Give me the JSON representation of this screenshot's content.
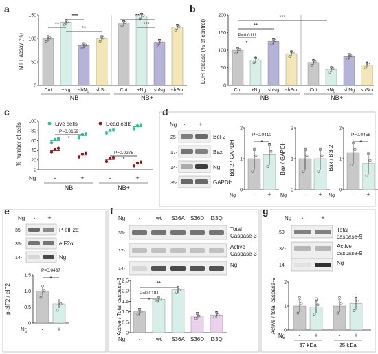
{
  "panels": {
    "a": "a",
    "b": "b",
    "c": "c",
    "d": "d",
    "e": "e",
    "f": "f",
    "g": "g"
  },
  "colors": {
    "grey": "#c8c8c8",
    "green": "#d8efe9",
    "purple": "#b6b3d8",
    "yellow": "#f3e7b7",
    "pink": "#ead3ea",
    "lime": "#2fbf92",
    "maroon": "#8b1a1a"
  },
  "chart_data": [
    {
      "id": "a",
      "type": "bar",
      "ylabel": "MTT assay (%)",
      "ylim": [
        0,
        150
      ],
      "yticks": [
        "0",
        "50",
        "100",
        "150"
      ],
      "categories": [
        "Cnt",
        "+Ng",
        "shNg",
        "shScr",
        "Cnt",
        "+Ng",
        "shNg",
        "shScr"
      ],
      "groups": [
        "NB",
        "NB+"
      ],
      "values": [
        100,
        135,
        85,
        100,
        133,
        148,
        92,
        124
      ],
      "sig": [
        "**",
        "***",
        "**",
        "**",
        "***"
      ]
    },
    {
      "id": "b",
      "type": "bar",
      "ylabel": "LDH release (% of control)",
      "ylim": [
        0,
        200
      ],
      "yticks": [
        "0",
        "50",
        "100",
        "150",
        "200"
      ],
      "categories": [
        "Cnt",
        "+Ng",
        "shNg",
        "shScr",
        "Cnt",
        "+Ng",
        "shNg",
        "shScr"
      ],
      "groups": [
        "NB",
        "NB+"
      ],
      "values": [
        100,
        72,
        125,
        90,
        65,
        45,
        82,
        58
      ],
      "sig": [
        "***",
        "**",
        "P=0.0111",
        "*"
      ]
    },
    {
      "id": "c",
      "type": "scatter",
      "ylabel": "% number of cells",
      "ylim": [
        0,
        100
      ],
      "yticks": [
        "0",
        "20",
        "40",
        "60",
        "80",
        "100"
      ],
      "legend": [
        "Live cells",
        "Dead cells"
      ],
      "xrow_label": "Ng",
      "xrow": [
        "-",
        "+",
        "-",
        "+"
      ],
      "groups": [
        "NB",
        "NB+"
      ],
      "series": [
        {
          "name": "Live cells",
          "means": [
            60,
            70,
            79,
            88
          ]
        },
        {
          "name": "Dead cells",
          "means": [
            40,
            30,
            21,
            12
          ]
        }
      ],
      "sig": [
        "P=0.0159",
        "*",
        "P=0.0275",
        "*"
      ]
    },
    {
      "id": "d",
      "type": "bar",
      "blot": {
        "ng_label": "Ng",
        "lanes": [
          "-",
          "+"
        ],
        "rows": [
          {
            "kda": "25-",
            "name": "Bcl-2"
          },
          {
            "kda": "17-",
            "name": "Bax"
          },
          {
            "kda": "14-",
            "name": "Ng"
          },
          {
            "kda": "35-",
            "name": "GAPDH"
          }
        ]
      },
      "plots": [
        {
          "ylabel": "Bcl-2 / GAPDH",
          "ylim": [
            0,
            2
          ],
          "yticks": [
            "0",
            "1",
            "2"
          ],
          "values": [
            1.0,
            1.15
          ],
          "sig": [
            "P=0.0410",
            "*"
          ]
        },
        {
          "ylabel": "Bax / GAPDH",
          "ylim": [
            0,
            2
          ],
          "yticks": [
            "0",
            "1",
            "2"
          ],
          "values": [
            1.0,
            1.0
          ],
          "sig": []
        },
        {
          "ylabel": "Bax / Bcl-2",
          "ylim": [
            0,
            2
          ],
          "yticks": [
            "0",
            "1",
            "2"
          ],
          "values": [
            1.2,
            0.85
          ],
          "sig": [
            "P=0.0458",
            "*"
          ]
        }
      ],
      "xrow": [
        "-",
        "+"
      ],
      "xrow_label": "Ng"
    },
    {
      "id": "e",
      "type": "bar",
      "blot": {
        "ng_label": "Ng",
        "lanes": [
          "-",
          "+"
        ],
        "rows": [
          {
            "kda": "35-",
            "name": "P-eIF2α"
          },
          {
            "kda": "35-",
            "name": "eIF2α"
          },
          {
            "kda": "14-",
            "name": "Ng"
          }
        ]
      },
      "ylabel": "p-eIF2 / eIF2",
      "ylim": [
        0,
        1.5
      ],
      "yticks": [
        "0",
        "0.5",
        "1.0",
        "1.5"
      ],
      "values": [
        1.0,
        0.6
      ],
      "xrow": [
        "-",
        "+"
      ],
      "xrow_label": "Ng",
      "sig": [
        "P=0.0437",
        "*"
      ]
    },
    {
      "id": "f",
      "type": "bar",
      "blot": {
        "ng_label": "Ng",
        "lanes": [
          "-",
          "wt",
          "S36A",
          "S36D",
          "I33Q"
        ],
        "rows": [
          {
            "kda": "35-",
            "name": "Total Caspase-3"
          },
          {
            "kda": "17-",
            "name": "Active Caspase-3"
          },
          {
            "kda": "14-",
            "name": "Ng"
          }
        ]
      },
      "ylabel": "Active / Total caspase-3",
      "ylim": [
        0,
        2.5
      ],
      "yticks": [
        "0",
        "0.5",
        "1.0",
        "1.5",
        "2.0",
        "2.5"
      ],
      "categories": [
        "-",
        "wt",
        "S36A",
        "S36D",
        "I33Q"
      ],
      "xrow_label": "Ng",
      "values": [
        1.0,
        1.6,
        2.05,
        0.8,
        0.85
      ],
      "sig": [
        "P=0.0181",
        "*",
        "**"
      ]
    },
    {
      "id": "g",
      "type": "bar",
      "blot": {
        "ng_label": "Ng",
        "lanes": [
          "-",
          "+"
        ],
        "rows": [
          {
            "kda": "50-",
            "name": "Total caspase-9"
          },
          {
            "kda": "37-",
            "name": "Active caspase-9"
          },
          {
            "kda": "14-",
            "name": "Ng"
          }
        ]
      },
      "ylabel": "Active / total caspase-9",
      "ylim": [
        0,
        2
      ],
      "yticks": [
        "0",
        "1",
        "2"
      ],
      "xrow": [
        "-",
        "+",
        "-",
        "+"
      ],
      "xrow_label": "Ng",
      "groups": [
        "37 kDa",
        "25 kDa"
      ],
      "values": [
        1.0,
        0.95,
        1.0,
        1.1
      ]
    }
  ]
}
